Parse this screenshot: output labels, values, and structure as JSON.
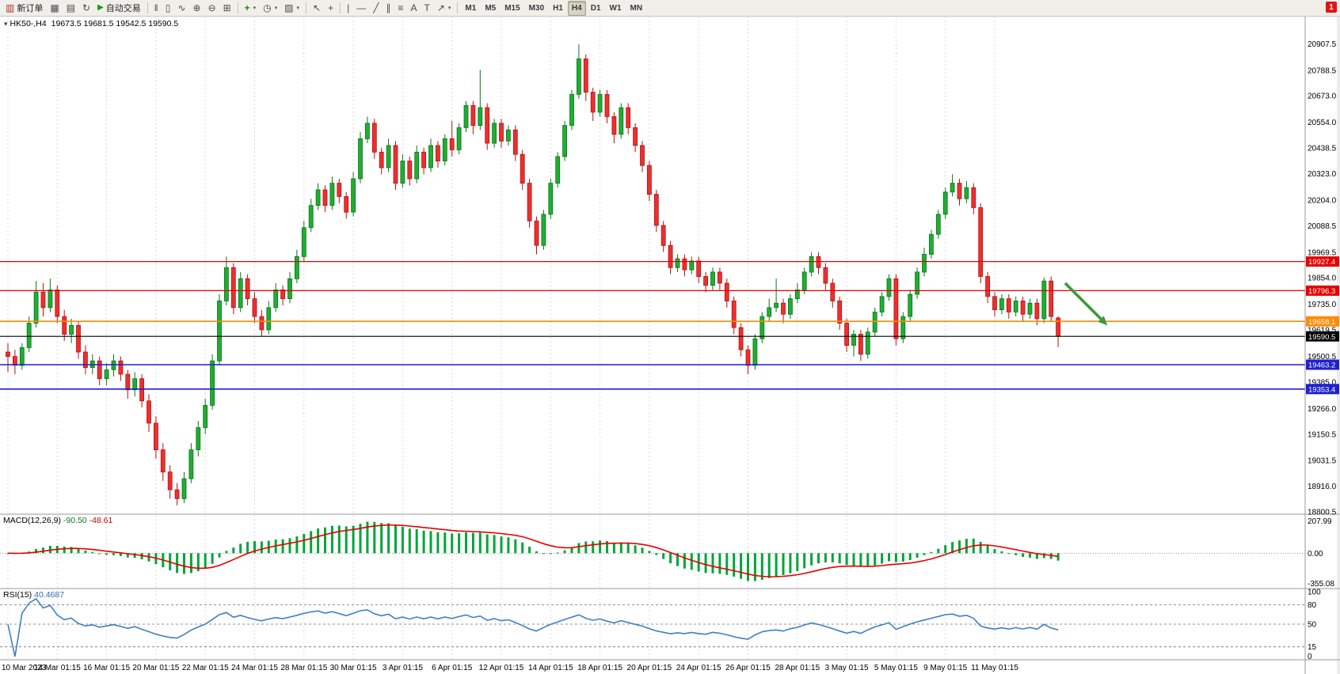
{
  "window": {
    "notification_badge": "1"
  },
  "toolbar": {
    "new_order_label": "新订单",
    "autotrading_label": "自动交易",
    "timeframes": [
      "M1",
      "M5",
      "M15",
      "M30",
      "H1",
      "H4",
      "D1",
      "W1",
      "MN"
    ],
    "active_timeframe": "H4"
  },
  "icons": {
    "new_order": "▥",
    "charts": "▦",
    "profiles": "▤",
    "refresh": "↻",
    "autotrading": "▶",
    "bar_chart": "‖",
    "candle_chart": "▯",
    "line_chart": "∿",
    "zoom_in": "⊕",
    "zoom_out": "⊖",
    "tile": "⊞",
    "indicators": "+",
    "periods": "◷",
    "templates": "▨",
    "cursor": "↖",
    "crosshair": "+",
    "vline": "|",
    "hline": "—",
    "trendline": "╱",
    "channel": "∥",
    "fibonacci": "≡",
    "text": "A",
    "label": "T",
    "arrows": "↗",
    "caret": "▾",
    "collapse": "▾"
  },
  "chart": {
    "header": {
      "collapse_icon": "▾",
      "symbol": "HK50-,H4",
      "ohlc": "19673.5 19681.5 19542.5 19590.5"
    },
    "macd_label": {
      "name": "MACD(12,26,9)",
      "main": "-90.50",
      "signal": "-48.61"
    },
    "rsi_label": {
      "name": "RSI(15)",
      "value": "40.4687"
    }
  },
  "chart_data": {
    "type": "candlestick",
    "symbol": "HK50-",
    "timeframe": "H4",
    "ohlc_display": {
      "open": 19673.5,
      "high": 19681.5,
      "low": 19542.5,
      "close": 19590.5
    },
    "y_range": {
      "top": 21030,
      "bottom": 18790
    },
    "price_ticks": [
      20907.5,
      20788.5,
      20673.0,
      20554.0,
      20438.5,
      20323.0,
      20204.0,
      20088.5,
      19969.5,
      19854.0,
      19735.0,
      19619.5,
      19500.5,
      19385.0,
      19266.0,
      19150.5,
      19031.5,
      18916.0,
      18800.5
    ],
    "hlines": [
      {
        "price": 19927.4,
        "color": "#e60000",
        "width": 1.2
      },
      {
        "price": 19796.3,
        "color": "#e60000",
        "width": 1.2
      },
      {
        "price": 19658.1,
        "color": "#ff8a00",
        "width": 1.6
      },
      {
        "price": 19590.5,
        "color": "#000000",
        "width": 1.1
      },
      {
        "price": 19463.2,
        "color": "#1f1fd0",
        "width": 1.6
      },
      {
        "price": 19353.4,
        "color": "#1f1fd0",
        "width": 1.6
      }
    ],
    "arrow": {
      "from_bar": 150,
      "from_price": 19830,
      "to_bar": 156,
      "to_price": 19640
    },
    "colors": {
      "up": "#1fae32",
      "up_border": "#0b741a",
      "down": "#ee2f2f",
      "down_border": "#b01212",
      "macd_hist": "#00a53a",
      "macd_signal": "#e80000",
      "rsi_line": "#3e7fc1",
      "grid": "#d9d9d9",
      "arrow": "#3a9a3a"
    },
    "macd": {
      "name": "MACD",
      "fast": 12,
      "slow": 26,
      "signal": 9,
      "axis": [
        "207.99",
        "0.00",
        "-355.08"
      ]
    },
    "rsi": {
      "period": 15,
      "axis": [
        100,
        80,
        50,
        15,
        0
      ],
      "levels": [
        80,
        50,
        15
      ]
    },
    "time_labels": [
      {
        "text": "10 Mar 2023",
        "bar": 0
      },
      {
        "text": "14 Mar 01:15",
        "bar": 7
      },
      {
        "text": "16 Mar 01:15",
        "bar": 14
      },
      {
        "text": "20 Mar 01:15",
        "bar": 21
      },
      {
        "text": "22 Mar 01:15",
        "bar": 28
      },
      {
        "text": "24 Mar 01:15",
        "bar": 35
      },
      {
        "text": "28 Mar 01:15",
        "bar": 42
      },
      {
        "text": "30 Mar 01:15",
        "bar": 49
      },
      {
        "text": "3 Apr 01:15",
        "bar": 56
      },
      {
        "text": "6 Apr 01:15",
        "bar": 63
      },
      {
        "text": "12 Apr 01:15",
        "bar": 70
      },
      {
        "text": "14 Apr 01:15",
        "bar": 77
      },
      {
        "text": "18 Apr 01:15",
        "bar": 84
      },
      {
        "text": "20 Apr 01:15",
        "bar": 91
      },
      {
        "text": "24 Apr 01:15",
        "bar": 98
      },
      {
        "text": "26 Apr 01:15",
        "bar": 105
      },
      {
        "text": "28 Apr 01:15",
        "bar": 112
      },
      {
        "text": "3 May 01:15",
        "bar": 119
      },
      {
        "text": "5 May 01:15",
        "bar": 126
      },
      {
        "text": "9 May 01:15",
        "bar": 133
      },
      {
        "text": "11 May 01:15",
        "bar": 140
      }
    ],
    "candles": [
      [
        19520,
        19560,
        19430,
        19500
      ],
      [
        19500,
        19530,
        19420,
        19460
      ],
      [
        19460,
        19560,
        19440,
        19540
      ],
      [
        19540,
        19680,
        19520,
        19650
      ],
      [
        19650,
        19840,
        19630,
        19790
      ],
      [
        19790,
        19830,
        19680,
        19720
      ],
      [
        19720,
        19850,
        19700,
        19800
      ],
      [
        19800,
        19820,
        19650,
        19680
      ],
      [
        19680,
        19710,
        19570,
        19600
      ],
      [
        19600,
        19670,
        19560,
        19640
      ],
      [
        19640,
        19660,
        19490,
        19520
      ],
      [
        19520,
        19550,
        19420,
        19450
      ],
      [
        19450,
        19510,
        19420,
        19480
      ],
      [
        19480,
        19500,
        19370,
        19400
      ],
      [
        19400,
        19470,
        19370,
        19440
      ],
      [
        19440,
        19510,
        19410,
        19480
      ],
      [
        19480,
        19500,
        19390,
        19420
      ],
      [
        19420,
        19440,
        19310,
        19350
      ],
      [
        19350,
        19430,
        19320,
        19400
      ],
      [
        19400,
        19420,
        19270,
        19300
      ],
      [
        19300,
        19330,
        19160,
        19200
      ],
      [
        19200,
        19230,
        19040,
        19080
      ],
      [
        19080,
        19110,
        18940,
        18980
      ],
      [
        18980,
        19010,
        18860,
        18900
      ],
      [
        18900,
        18930,
        18830,
        18860
      ],
      [
        18860,
        18980,
        18840,
        18950
      ],
      [
        18950,
        19110,
        18930,
        19080
      ],
      [
        19080,
        19210,
        19050,
        19180
      ],
      [
        19180,
        19310,
        19150,
        19280
      ],
      [
        19280,
        19510,
        19260,
        19480
      ],
      [
        19480,
        19780,
        19460,
        19750
      ],
      [
        19750,
        19950,
        19730,
        19900
      ],
      [
        19900,
        19920,
        19690,
        19720
      ],
      [
        19720,
        19880,
        19700,
        19850
      ],
      [
        19850,
        19870,
        19730,
        19760
      ],
      [
        19760,
        19790,
        19650,
        19680
      ],
      [
        19680,
        19710,
        19590,
        19620
      ],
      [
        19620,
        19750,
        19600,
        19720
      ],
      [
        19720,
        19830,
        19700,
        19800
      ],
      [
        19800,
        19820,
        19730,
        19760
      ],
      [
        19760,
        19880,
        19740,
        19850
      ],
      [
        19850,
        19980,
        19830,
        19950
      ],
      [
        19950,
        20110,
        19930,
        20080
      ],
      [
        20080,
        20210,
        20060,
        20180
      ],
      [
        20180,
        20280,
        20160,
        20250
      ],
      [
        20250,
        20270,
        20150,
        20180
      ],
      [
        20180,
        20310,
        20160,
        20280
      ],
      [
        20280,
        20300,
        20190,
        20220
      ],
      [
        20220,
        20240,
        20120,
        20150
      ],
      [
        20150,
        20330,
        20130,
        20300
      ],
      [
        20300,
        20510,
        20280,
        20480
      ],
      [
        20480,
        20580,
        20460,
        20550
      ],
      [
        20550,
        20570,
        20390,
        20420
      ],
      [
        20420,
        20440,
        20320,
        20350
      ],
      [
        20350,
        20480,
        20330,
        20450
      ],
      [
        20450,
        20470,
        20250,
        20280
      ],
      [
        20280,
        20410,
        20260,
        20380
      ],
      [
        20380,
        20400,
        20270,
        20300
      ],
      [
        20300,
        20450,
        20280,
        20420
      ],
      [
        20420,
        20440,
        20320,
        20350
      ],
      [
        20350,
        20480,
        20330,
        20450
      ],
      [
        20450,
        20470,
        20350,
        20380
      ],
      [
        20380,
        20500,
        20360,
        20480
      ],
      [
        20480,
        20560,
        20400,
        20430
      ],
      [
        20430,
        20550,
        20410,
        20530
      ],
      [
        20530,
        20650,
        20510,
        20630
      ],
      [
        20630,
        20650,
        20500,
        20540
      ],
      [
        20540,
        20790,
        20520,
        20620
      ],
      [
        20620,
        20640,
        20430,
        20460
      ],
      [
        20460,
        20570,
        20440,
        20550
      ],
      [
        20550,
        20570,
        20440,
        20470
      ],
      [
        20470,
        20540,
        20450,
        20520
      ],
      [
        20520,
        20540,
        20380,
        20410
      ],
      [
        20410,
        20430,
        20250,
        20280
      ],
      [
        20280,
        20300,
        20080,
        20110
      ],
      [
        20110,
        20130,
        19960,
        20000
      ],
      [
        20000,
        20160,
        19980,
        20140
      ],
      [
        20140,
        20300,
        20120,
        20280
      ],
      [
        20280,
        20420,
        20260,
        20400
      ],
      [
        20400,
        20560,
        20380,
        20540
      ],
      [
        20540,
        20700,
        20520,
        20680
      ],
      [
        20680,
        20905,
        20660,
        20840
      ],
      [
        20840,
        20860,
        20650,
        20690
      ],
      [
        20690,
        20710,
        20560,
        20600
      ],
      [
        20600,
        20700,
        20580,
        20680
      ],
      [
        20680,
        20700,
        20550,
        20580
      ],
      [
        20580,
        20600,
        20460,
        20500
      ],
      [
        20500,
        20640,
        20480,
        20620
      ],
      [
        20620,
        20640,
        20500,
        20530
      ],
      [
        20530,
        20550,
        20420,
        20450
      ],
      [
        20450,
        20470,
        20330,
        20360
      ],
      [
        20360,
        20380,
        20200,
        20230
      ],
      [
        20230,
        20250,
        20060,
        20090
      ],
      [
        20090,
        20110,
        19970,
        20000
      ],
      [
        20000,
        20020,
        19870,
        19900
      ],
      [
        19900,
        19960,
        19880,
        19940
      ],
      [
        19940,
        19960,
        19860,
        19890
      ],
      [
        19890,
        19950,
        19870,
        19930
      ],
      [
        19930,
        19950,
        19830,
        19860
      ],
      [
        19860,
        19880,
        19790,
        19820
      ],
      [
        19820,
        19900,
        19800,
        19880
      ],
      [
        19880,
        19900,
        19800,
        19830
      ],
      [
        19830,
        19850,
        19720,
        19750
      ],
      [
        19750,
        19770,
        19600,
        19630
      ],
      [
        19630,
        19650,
        19500,
        19530
      ],
      [
        19530,
        19550,
        19420,
        19460
      ],
      [
        19460,
        19600,
        19440,
        19580
      ],
      [
        19580,
        19700,
        19560,
        19680
      ],
      [
        19680,
        19760,
        19660,
        19720
      ],
      [
        19720,
        19850,
        19700,
        19740
      ],
      [
        19740,
        19760,
        19650,
        19690
      ],
      [
        19690,
        19780,
        19670,
        19760
      ],
      [
        19760,
        19830,
        19740,
        19800
      ],
      [
        19800,
        19900,
        19780,
        19880
      ],
      [
        19880,
        19970,
        19860,
        19950
      ],
      [
        19950,
        19970,
        19870,
        19900
      ],
      [
        19900,
        19920,
        19800,
        19830
      ],
      [
        19830,
        19850,
        19720,
        19750
      ],
      [
        19750,
        19770,
        19620,
        19650
      ],
      [
        19650,
        19670,
        19520,
        19550
      ],
      [
        19550,
        19620,
        19500,
        19600
      ],
      [
        19600,
        19620,
        19480,
        19510
      ],
      [
        19510,
        19630,
        19490,
        19610
      ],
      [
        19610,
        19720,
        19590,
        19700
      ],
      [
        19700,
        19790,
        19680,
        19770
      ],
      [
        19770,
        19870,
        19750,
        19850
      ],
      [
        19850,
        19870,
        19550,
        19580
      ],
      [
        19580,
        19700,
        19560,
        19680
      ],
      [
        19680,
        19800,
        19660,
        19780
      ],
      [
        19780,
        19900,
        19760,
        19880
      ],
      [
        19880,
        19990,
        19860,
        19960
      ],
      [
        19960,
        20070,
        19940,
        20050
      ],
      [
        20050,
        20160,
        20030,
        20140
      ],
      [
        20140,
        20260,
        20120,
        20240
      ],
      [
        20240,
        20320,
        20220,
        20280
      ],
      [
        20280,
        20300,
        20180,
        20210
      ],
      [
        20210,
        20290,
        20190,
        20260
      ],
      [
        20260,
        20280,
        20140,
        20170
      ],
      [
        20170,
        20190,
        19830,
        19860
      ],
      [
        19860,
        19880,
        19740,
        19770
      ],
      [
        19770,
        19790,
        19680,
        19710
      ],
      [
        19710,
        19780,
        19690,
        19760
      ],
      [
        19760,
        19780,
        19670,
        19700
      ],
      [
        19700,
        19770,
        19680,
        19750
      ],
      [
        19750,
        19770,
        19660,
        19690
      ],
      [
        19690,
        19760,
        19670,
        19740
      ],
      [
        19740,
        19760,
        19640,
        19670
      ],
      [
        19670,
        19855,
        19650,
        19840
      ],
      [
        19840,
        19860,
        19660,
        19680
      ],
      [
        19673.5,
        19681.5,
        19542.5,
        19590.5
      ]
    ]
  }
}
